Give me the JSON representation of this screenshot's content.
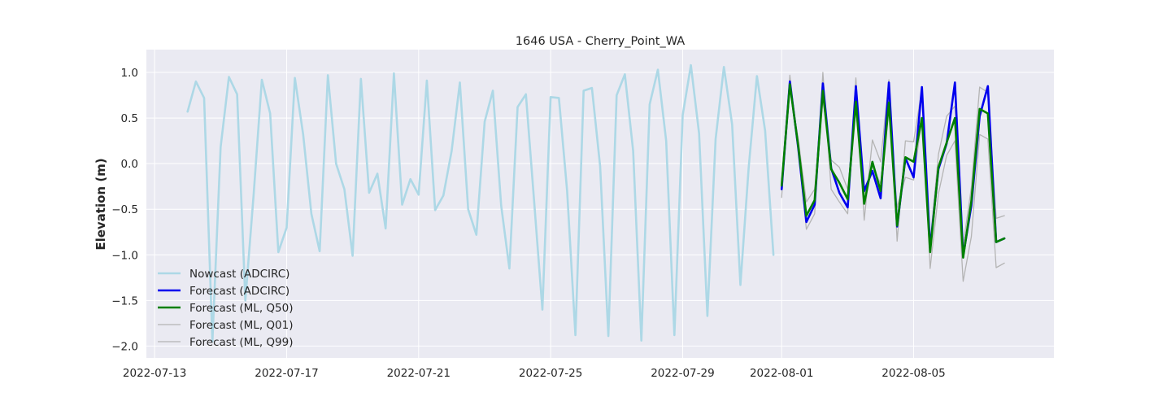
{
  "chart_data": {
    "type": "line",
    "title": "1646 USA - Cherry_Point_WA",
    "xlabel": "",
    "ylabel": "Elevation (m)",
    "xlim": [
      "2022-07-12T18:00",
      "2022-08-09T06:00"
    ],
    "ylim": [
      -2.13,
      1.25
    ],
    "grid": true,
    "legend_position": "lower-left",
    "x_ticks": [
      "2022-07-13",
      "2022-07-17",
      "2022-07-21",
      "2022-07-25",
      "2022-07-29",
      "2022-08-01",
      "2022-08-05"
    ],
    "y_ticks": [
      1.0,
      0.5,
      0.0,
      -0.5,
      -1.0,
      -1.5,
      -2.0
    ],
    "y_tick_labels": [
      "1.0",
      "0.5",
      "0.0",
      "−0.5",
      "−1.0",
      "−1.5",
      "−2.0"
    ],
    "colors": {
      "nowcast": "#add8e6",
      "forecast_adcirc": "#0000ee",
      "forecast_q50": "#008000",
      "forecast_q01": "#b4b4b4",
      "forecast_q99": "#b4b4b4",
      "plot_bg": "#eaeaf2",
      "grid": "#ffffff"
    },
    "series": [
      {
        "name": "Nowcast (ADCIRC)",
        "key": "nowcast",
        "start": "2022-07-14T00:00",
        "step_hours": 6,
        "values": [
          0.57,
          0.9,
          0.72,
          -1.95,
          0.18,
          0.95,
          0.76,
          -1.5,
          -0.34,
          0.92,
          0.55,
          -0.97,
          -0.7,
          0.94,
          0.32,
          -0.55,
          -0.96,
          0.97,
          0.0,
          -0.28,
          -1.01,
          0.93,
          -0.32,
          -0.11,
          -0.71,
          0.99,
          -0.45,
          -0.17,
          -0.34,
          0.91,
          -0.51,
          -0.35,
          0.14,
          0.89,
          -0.5,
          -0.78,
          0.46,
          0.8,
          -0.46,
          -1.15,
          0.62,
          0.76,
          -0.41,
          -1.6,
          0.73,
          0.72,
          -0.3,
          -1.88,
          0.8,
          0.83,
          -0.03,
          -1.89,
          0.75,
          0.98,
          0.14,
          -1.94,
          0.65,
          1.03,
          0.25,
          -1.88,
          0.53,
          1.08,
          0.33,
          -1.67,
          0.27,
          1.06,
          0.43,
          -1.33,
          -0.05,
          0.96,
          0.36,
          -1.0
        ]
      },
      {
        "name": "Forecast (ADCIRC)",
        "key": "forecast_adcirc",
        "start": "2022-08-01T00:00",
        "step_hours": 6,
        "values": [
          -0.28,
          0.9,
          0.18,
          -0.64,
          -0.45,
          0.88,
          -0.05,
          -0.32,
          -0.48,
          0.85,
          -0.3,
          -0.08,
          -0.38,
          0.89,
          -0.69,
          0.06,
          -0.15,
          0.84,
          -0.93,
          -0.06,
          0.22,
          0.89,
          -1.01,
          -0.46,
          0.52,
          0.85,
          -0.86,
          -0.82
        ]
      },
      {
        "name": "Forecast (ML, Q50)",
        "key": "forecast_q50",
        "start": "2022-08-01T00:00",
        "step_hours": 6,
        "values": [
          -0.24,
          0.87,
          0.2,
          -0.57,
          -0.4,
          0.8,
          -0.06,
          -0.21,
          -0.39,
          0.68,
          -0.44,
          0.02,
          -0.3,
          0.67,
          -0.68,
          0.07,
          0.02,
          0.5,
          -0.97,
          -0.04,
          0.23,
          0.5,
          -1.03,
          -0.41,
          0.6,
          0.55,
          -0.86,
          -0.82
        ]
      },
      {
        "name": "Forecast (ML, Q01)",
        "key": "forecast_q01",
        "start": "2022-08-01T00:00",
        "step_hours": 6,
        "values": [
          -0.37,
          0.97,
          0.17,
          -0.72,
          -0.55,
          1.0,
          -0.28,
          -0.42,
          -0.55,
          0.94,
          -0.62,
          0.26,
          0.02,
          0.92,
          -0.85,
          0.25,
          0.24,
          0.82,
          -1.15,
          -0.33,
          0.09,
          0.25,
          -1.29,
          -0.8,
          0.32,
          0.27,
          -1.14,
          -1.09
        ]
      },
      {
        "name": "Forecast (ML, Q99)",
        "key": "forecast_q99",
        "start": "2022-08-01T00:00",
        "step_hours": 6,
        "values": [
          -0.2,
          0.82,
          0.28,
          -0.42,
          -0.28,
          0.7,
          0.04,
          -0.04,
          -0.28,
          0.6,
          -0.33,
          -0.03,
          -0.22,
          0.6,
          -0.48,
          -0.15,
          -0.18,
          0.5,
          -0.87,
          0.1,
          0.52,
          0.63,
          -0.9,
          -0.26,
          0.84,
          0.78,
          -0.6,
          -0.57
        ]
      }
    ]
  }
}
